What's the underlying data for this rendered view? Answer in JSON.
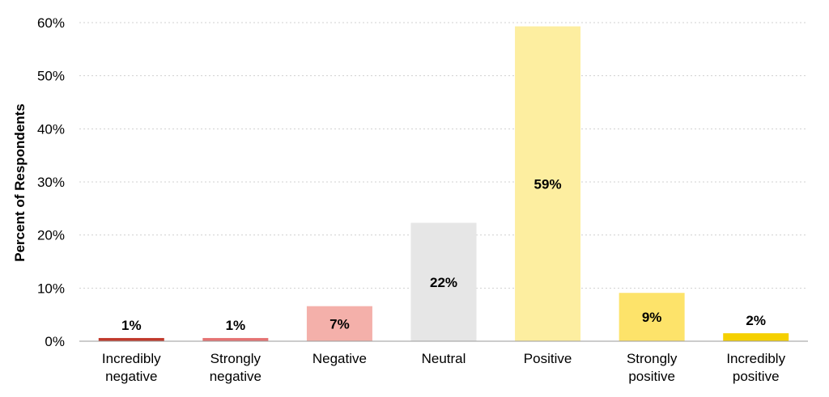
{
  "chart_data": {
    "type": "bar",
    "categories": [
      [
        "Incredibly",
        "negative"
      ],
      [
        "Strongly",
        "negative"
      ],
      [
        "Negative"
      ],
      [
        "Neutral"
      ],
      [
        "Positive"
      ],
      [
        "Strongly",
        "positive"
      ],
      [
        "Incredibly",
        "positive"
      ]
    ],
    "values": [
      0.6,
      0.6,
      6.6,
      22.3,
      59.3,
      9.1,
      1.5
    ],
    "data_labels": [
      "1%",
      "1%",
      "7%",
      "22%",
      "59%",
      "9%",
      "2%"
    ],
    "colors": [
      "#c0392b",
      "#e57373",
      "#f4b0aa",
      "#e6e6e6",
      "#fdeea0",
      "#fde36a",
      "#f5d000"
    ],
    "ylabel": "Percent of Respondents",
    "ylim": [
      0,
      60
    ],
    "yticks": [
      "0%",
      "10%",
      "20%",
      "30%",
      "40%",
      "50%",
      "60%"
    ],
    "grid": true,
    "legend": "none"
  }
}
